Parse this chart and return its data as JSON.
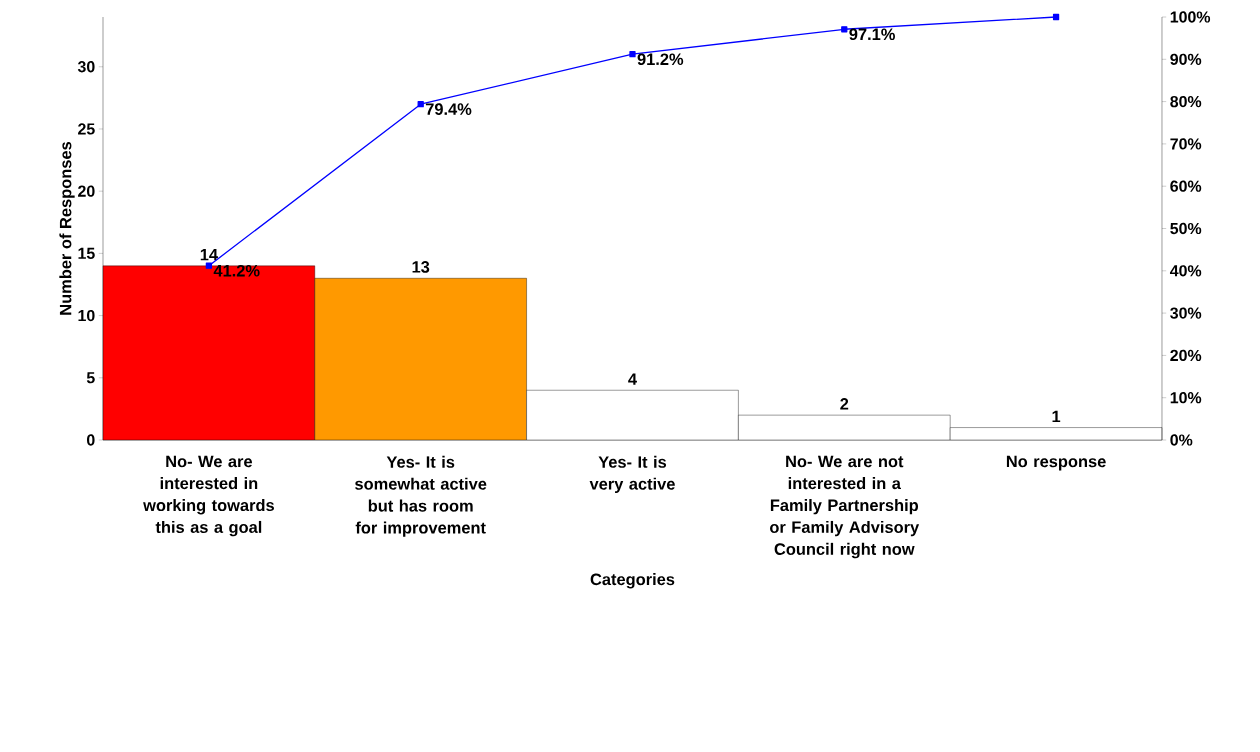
{
  "chart_data": {
    "type": "bar",
    "xlabel": "Categories",
    "ylabel": "Number of Responses",
    "categories": [
      "No- We are interested in working towards this as a goal",
      "Yes- It is somewhat active but has room for improvement",
      "Yes- It is very active",
      "No- We are not interested in a Family Partnership or Family Advisory Council right now",
      "No response"
    ],
    "series": [
      {
        "colors": [
          "#ff0000",
          "#ff9900",
          "#ffffff",
          "#ffffff",
          "#ffffff"
        ],
        "values": [
          14,
          13,
          4,
          2,
          1
        ],
        "value_labels": [
          "14",
          "13",
          "4",
          "2",
          "1"
        ]
      },
      {
        "type": "line",
        "axis": "y2",
        "values": [
          41.2,
          79.4,
          91.2,
          97.1,
          100
        ],
        "color": "#0000ff",
        "marker": "square",
        "value_labels": [
          "41.2%",
          "79.4%",
          "91.2%",
          "97.1%",
          null
        ]
      }
    ],
    "ylim": [
      0,
      34
    ],
    "yticks": [
      0,
      5,
      10,
      15,
      20,
      25,
      30
    ],
    "y2lim": [
      0,
      100
    ],
    "y2ticks": [
      {
        "value": 0,
        "label": "0%"
      },
      {
        "value": 10,
        "label": "10%"
      },
      {
        "value": 20,
        "label": "20%"
      },
      {
        "value": 30,
        "label": "30%"
      },
      {
        "value": 40,
        "label": "40%"
      },
      {
        "value": 50,
        "label": "50%"
      },
      {
        "value": 60,
        "label": "60%"
      },
      {
        "value": 70,
        "label": "70%"
      },
      {
        "value": 80,
        "label": "80%"
      },
      {
        "value": 90,
        "label": "90%"
      },
      {
        "value": 100,
        "label": "100%"
      }
    ],
    "grid": false
  }
}
